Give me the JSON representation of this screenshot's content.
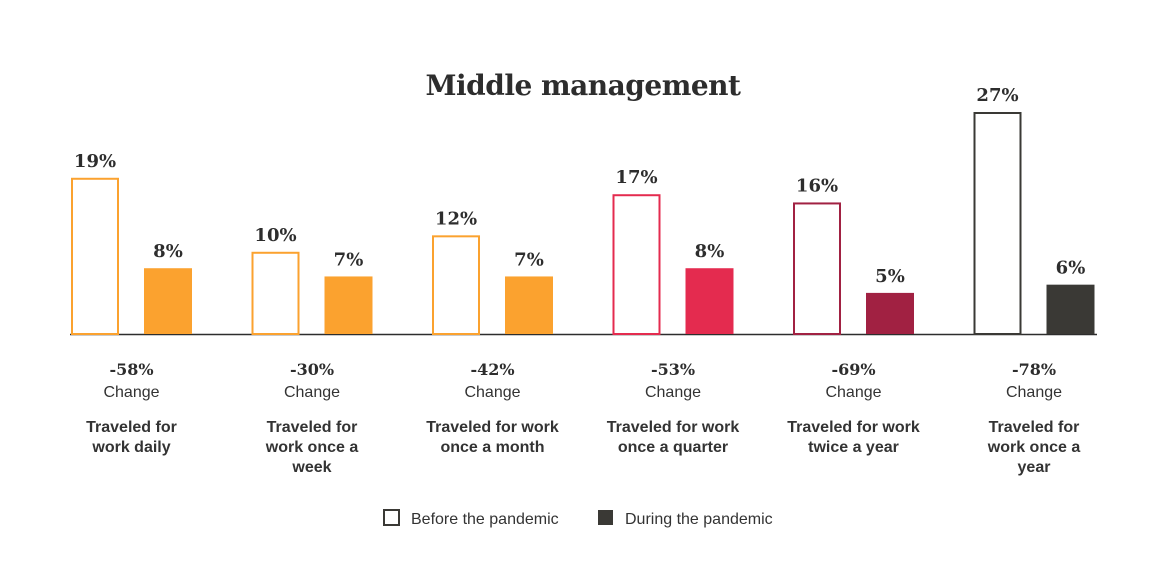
{
  "chart_data": {
    "type": "bar",
    "title": "Middle management",
    "categories": [
      "Traveled for work daily",
      "Traveled for work once a week",
      "Traveled for work once a month",
      "Traveled for work once a quarter",
      "Traveled for work twice a year",
      "Traveled for work once a year"
    ],
    "category_lines": [
      [
        "Traveled for",
        "work daily"
      ],
      [
        "Traveled for",
        "work once a",
        "week"
      ],
      [
        "Traveled for work",
        "once a month"
      ],
      [
        "Traveled for work",
        "once a quarter"
      ],
      [
        "Traveled for work",
        "twice a year"
      ],
      [
        "Traveled for",
        "work once a",
        "year"
      ]
    ],
    "series": [
      {
        "name": "Before the pandemic",
        "values": [
          19,
          10,
          12,
          17,
          16,
          27
        ],
        "labels": [
          "19%",
          "10%",
          "12%",
          "17%",
          "16%",
          "27%"
        ],
        "style": "outline"
      },
      {
        "name": "During the pandemic",
        "values": [
          8,
          7,
          7,
          8,
          5,
          6
        ],
        "labels": [
          "8%",
          "7%",
          "7%",
          "8%",
          "5%",
          "6%"
        ],
        "style": "filled"
      }
    ],
    "change": {
      "values": [
        "-58%",
        "-30%",
        "-42%",
        "-53%",
        "-69%",
        "-78%"
      ],
      "label": "Change"
    },
    "colors": [
      "#FBA22F",
      "#FBA22F",
      "#FBA22F",
      "#E42B4F",
      "#A12142",
      "#3A3935"
    ],
    "legend_swatch_color": "#3A3935",
    "legend_position": "bottom",
    "ylim": [
      0,
      27
    ],
    "grid": false
  }
}
